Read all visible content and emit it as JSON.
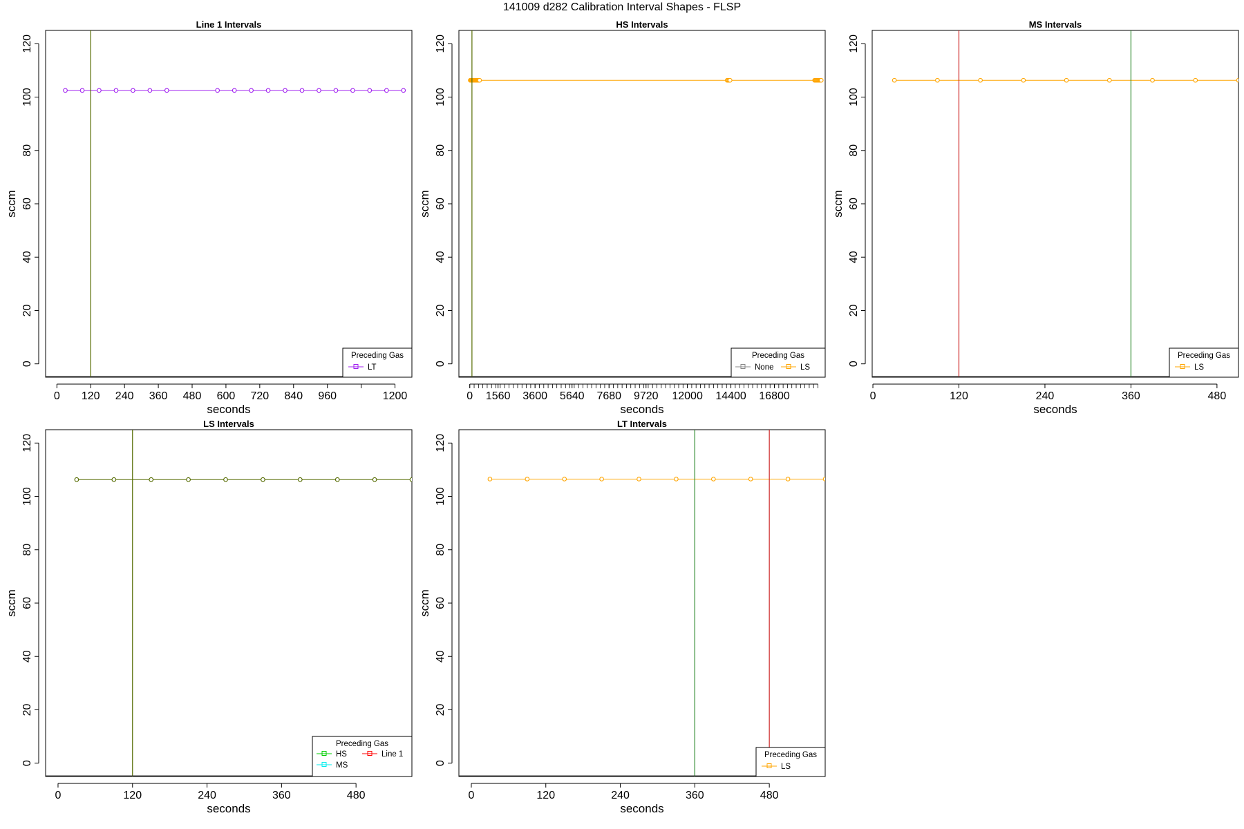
{
  "page": {
    "title": "141009   d282   Calibration Interval Shapes - FLSP"
  },
  "colors": {
    "LT": "#a020f0",
    "LS": "#ffa500",
    "HS": "#00cd00",
    "MS": "#00eeee",
    "Line 1": "#ff0000",
    "None": "#888888",
    "olive": "#556b00",
    "vgreen": "#2e8b2e",
    "vred": "#cd2626"
  },
  "chart_data": [
    {
      "type": "line",
      "title": "Line 1 Intervals",
      "xlabel": "seconds",
      "ylabel": "sccm",
      "xlim": [
        -40,
        1260
      ],
      "ylim": [
        -5,
        125
      ],
      "xticks": [
        0,
        120,
        240,
        360,
        480,
        600,
        720,
        840,
        960,
        1200
      ],
      "xtick_labels": [
        "0",
        "120",
        "240",
        "360",
        "480",
        "600",
        "720",
        "840",
        "960",
        "1200"
      ],
      "extra_minor_ticks": [
        1080
      ],
      "yticks": [
        0,
        20,
        40,
        60,
        80,
        100,
        120
      ],
      "vlines": [
        {
          "x": 120,
          "color": "olive"
        }
      ],
      "series": [
        {
          "name": "LT",
          "color": "LT",
          "y": 102.5,
          "x": [
            30,
            90,
            150,
            210,
            270,
            330,
            390,
            570,
            630,
            690,
            750,
            810,
            870,
            930,
            990,
            1050,
            1110,
            1170,
            1230
          ]
        }
      ],
      "legend": {
        "title": "Preceding Gas",
        "position": "bottom-right",
        "entries": [
          {
            "label": "LT",
            "color": "LT"
          }
        ]
      }
    },
    {
      "type": "line",
      "title": "HS Intervals",
      "xlabel": "seconds",
      "ylabel": "sccm",
      "xlim": [
        -600,
        19600
      ],
      "ylim": [
        -5,
        125
      ],
      "xticks": [
        0,
        1560,
        3600,
        5640,
        7680,
        9720,
        12000,
        14400,
        16800
      ],
      "xtick_labels": [
        "0",
        "1560",
        "3600",
        "5640",
        "7680",
        "9720",
        "12000",
        "14400",
        "16800"
      ],
      "dense_ticks_every": 240,
      "dense_ticks_range": [
        0,
        19200
      ],
      "yticks": [
        0,
        20,
        40,
        60,
        80,
        100,
        120
      ],
      "vlines": [
        {
          "x": 120,
          "color": "olive"
        }
      ],
      "series": [
        {
          "name": "LS",
          "color": "LS",
          "y": 106.3,
          "x": [
            30,
            60,
            90,
            120,
            150,
            180,
            210,
            240,
            270,
            300,
            330,
            360,
            390,
            420,
            450,
            480,
            510,
            540,
            14200,
            14250,
            14300,
            14350,
            19020,
            19060,
            19100,
            19140,
            19180,
            19220,
            19260,
            19300,
            19340,
            19380
          ]
        }
      ],
      "legend": {
        "title": "Preceding Gas",
        "position": "bottom-right",
        "entries": [
          {
            "label": "None",
            "color": "None"
          },
          {
            "label": "LS",
            "color": "LS"
          }
        ]
      }
    },
    {
      "type": "line",
      "title": "MS Intervals",
      "xlabel": "seconds",
      "ylabel": "sccm",
      "xlim": [
        -1,
        510
      ],
      "ylim": [
        -5,
        125
      ],
      "xticks": [
        0,
        120,
        240,
        360,
        480
      ],
      "xtick_labels": [
        "0",
        "120",
        "240",
        "360",
        "480"
      ],
      "yticks": [
        0,
        20,
        40,
        60,
        80,
        100,
        120
      ],
      "vlines": [
        {
          "x": 120,
          "color": "vred"
        },
        {
          "x": 360,
          "color": "vgreen"
        }
      ],
      "series": [
        {
          "name": "LS",
          "color": "LS",
          "y": 106.3,
          "x": [
            30,
            90,
            150,
            210,
            270,
            330,
            390,
            450,
            510
          ]
        }
      ],
      "legend": {
        "title": "Preceding Gas",
        "position": "bottom-right",
        "entries": [
          {
            "label": "LS",
            "color": "LS"
          }
        ]
      }
    },
    {
      "type": "line",
      "title": "LS Intervals",
      "xlabel": "seconds",
      "ylabel": "sccm",
      "xlim": [
        -20,
        570
      ],
      "ylim": [
        -5,
        125
      ],
      "xticks": [
        0,
        120,
        240,
        360,
        480
      ],
      "xtick_labels": [
        "0",
        "120",
        "240",
        "360",
        "480"
      ],
      "yticks": [
        0,
        20,
        40,
        60,
        80,
        100,
        120
      ],
      "vlines": [
        {
          "x": 120,
          "color": "olive"
        }
      ],
      "series": [
        {
          "name": "HS",
          "color": "olive",
          "y": 106.3,
          "x": [
            30,
            90,
            150,
            210,
            270,
            330,
            390,
            450,
            510,
            570
          ]
        }
      ],
      "legend": {
        "title": "Preceding Gas",
        "position": "bottom-right",
        "entries": [
          {
            "label": "HS",
            "color": "HS"
          },
          {
            "label": "MS",
            "color": "MS"
          },
          {
            "label": "Line 1",
            "color": "Line 1"
          }
        ]
      }
    },
    {
      "type": "line",
      "title": "LT Intervals",
      "xlabel": "seconds",
      "ylabel": "sccm",
      "xlim": [
        -20,
        570
      ],
      "ylim": [
        -5,
        125
      ],
      "xticks": [
        0,
        120,
        240,
        360,
        480
      ],
      "xtick_labels": [
        "0",
        "120",
        "240",
        "360",
        "480"
      ],
      "yticks": [
        0,
        20,
        40,
        60,
        80,
        100,
        120
      ],
      "vlines": [
        {
          "x": 360,
          "color": "vgreen"
        },
        {
          "x": 480,
          "color": "vred"
        }
      ],
      "series": [
        {
          "name": "LS",
          "color": "LS",
          "y": 106.5,
          "x": [
            30,
            90,
            150,
            210,
            270,
            330,
            390,
            450,
            510,
            570
          ]
        }
      ],
      "legend": {
        "title": "Preceding Gas",
        "position": "bottom-right",
        "entries": [
          {
            "label": "LS",
            "color": "LS"
          }
        ]
      }
    }
  ]
}
